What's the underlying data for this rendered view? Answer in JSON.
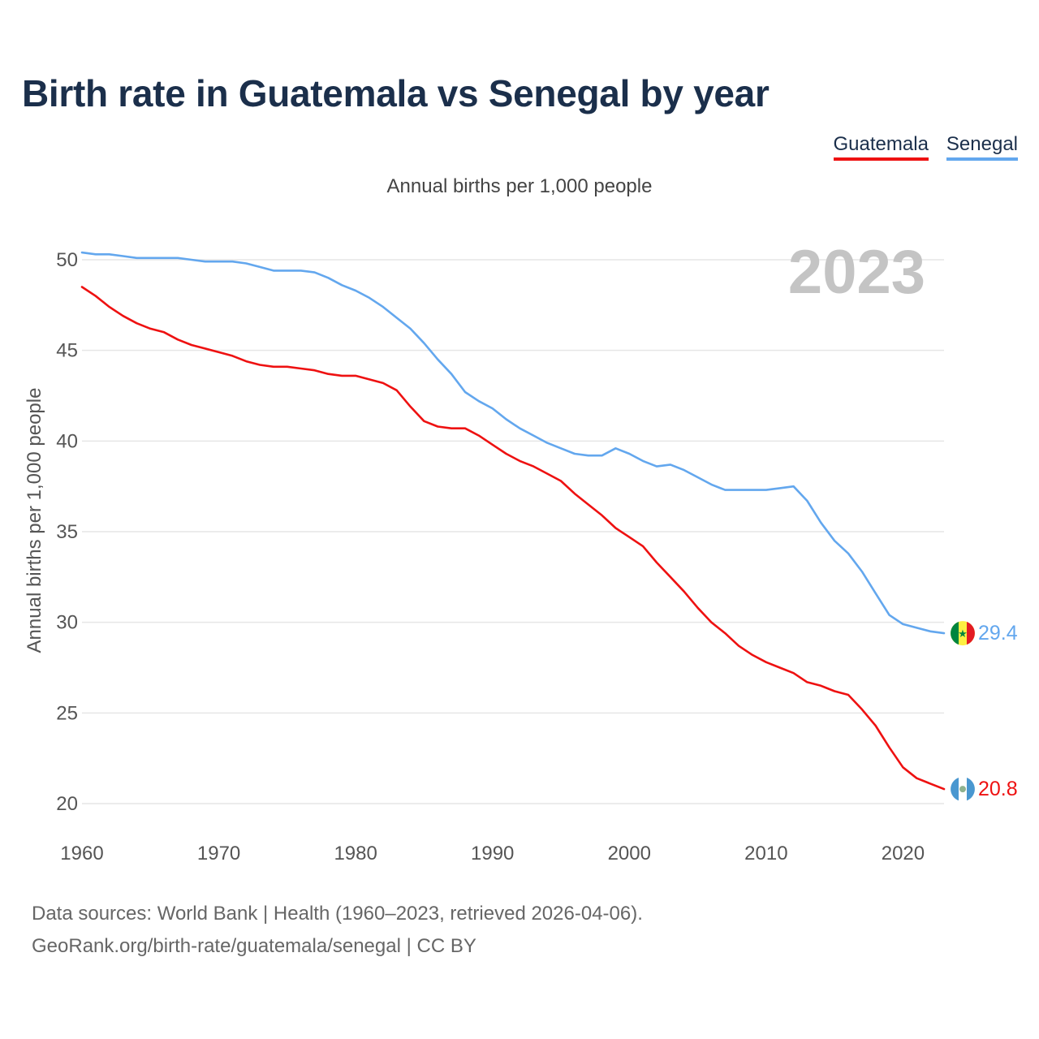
{
  "title": "Birth rate in Guatemala vs Senegal by year",
  "legend": [
    {
      "label": "Guatemala",
      "color": "#ee1111"
    },
    {
      "label": "Senegal",
      "color": "#63a7ee"
    }
  ],
  "subtitle": "Annual births per 1,000 people",
  "year_label": "2023",
  "source": {
    "line1": "Data sources: World Bank | Health (1960–2023, retrieved 2026-04-06).",
    "line2": "GeoRank.org/birth-rate/guatemala/senegal | CC BY"
  },
  "chart_data": {
    "type": "line",
    "title": "Birth rate in Guatemala vs Senegal by year",
    "xlabel": "",
    "ylabel": "Annual births per 1,000 people",
    "xlim": [
      1960,
      2023
    ],
    "ylim": [
      20,
      51
    ],
    "x_ticks": [
      1960,
      1970,
      1980,
      1990,
      2000,
      2010,
      2020
    ],
    "y_ticks": [
      20,
      25,
      30,
      35,
      40,
      45,
      50
    ],
    "grid": true,
    "legend_position": "top-right",
    "x": [
      1960,
      1961,
      1962,
      1963,
      1964,
      1965,
      1966,
      1967,
      1968,
      1969,
      1970,
      1971,
      1972,
      1973,
      1974,
      1975,
      1976,
      1977,
      1978,
      1979,
      1980,
      1981,
      1982,
      1983,
      1984,
      1985,
      1986,
      1987,
      1988,
      1989,
      1990,
      1991,
      1992,
      1993,
      1994,
      1995,
      1996,
      1997,
      1998,
      1999,
      2000,
      2001,
      2002,
      2003,
      2004,
      2005,
      2006,
      2007,
      2008,
      2009,
      2010,
      2011,
      2012,
      2013,
      2014,
      2015,
      2016,
      2017,
      2018,
      2019,
      2020,
      2021,
      2022,
      2023
    ],
    "series": [
      {
        "name": "Guatemala",
        "color": "#ee1111",
        "end_label": "20.8",
        "values": [
          48.5,
          48.0,
          47.4,
          46.9,
          46.5,
          46.2,
          46.0,
          45.6,
          45.3,
          45.1,
          44.9,
          44.7,
          44.4,
          44.2,
          44.1,
          44.1,
          44.0,
          43.9,
          43.7,
          43.6,
          43.6,
          43.4,
          43.2,
          42.8,
          41.9,
          41.1,
          40.8,
          40.7,
          40.7,
          40.3,
          39.8,
          39.3,
          38.9,
          38.6,
          38.2,
          37.8,
          37.1,
          36.5,
          35.9,
          35.2,
          34.7,
          34.2,
          33.3,
          32.5,
          31.7,
          30.8,
          30.0,
          29.4,
          28.7,
          28.2,
          27.8,
          27.5,
          27.2,
          26.7,
          26.5,
          26.2,
          26.0,
          25.2,
          24.3,
          23.1,
          22.0,
          21.4,
          21.1,
          20.8
        ]
      },
      {
        "name": "Senegal",
        "color": "#63a7ee",
        "end_label": "29.4",
        "values": [
          50.4,
          50.3,
          50.3,
          50.2,
          50.1,
          50.1,
          50.1,
          50.1,
          50.0,
          49.9,
          49.9,
          49.9,
          49.8,
          49.6,
          49.4,
          49.4,
          49.4,
          49.3,
          49.0,
          48.6,
          48.3,
          47.9,
          47.4,
          46.8,
          46.2,
          45.4,
          44.5,
          43.7,
          42.7,
          42.2,
          41.8,
          41.2,
          40.7,
          40.3,
          39.9,
          39.6,
          39.3,
          39.2,
          39.2,
          39.6,
          39.3,
          38.9,
          38.6,
          38.7,
          38.4,
          38.0,
          37.6,
          37.3,
          37.3,
          37.3,
          37.3,
          37.4,
          37.5,
          36.7,
          35.5,
          34.5,
          33.8,
          32.8,
          31.6,
          30.4,
          29.9,
          29.7,
          29.5,
          29.4
        ]
      }
    ]
  }
}
